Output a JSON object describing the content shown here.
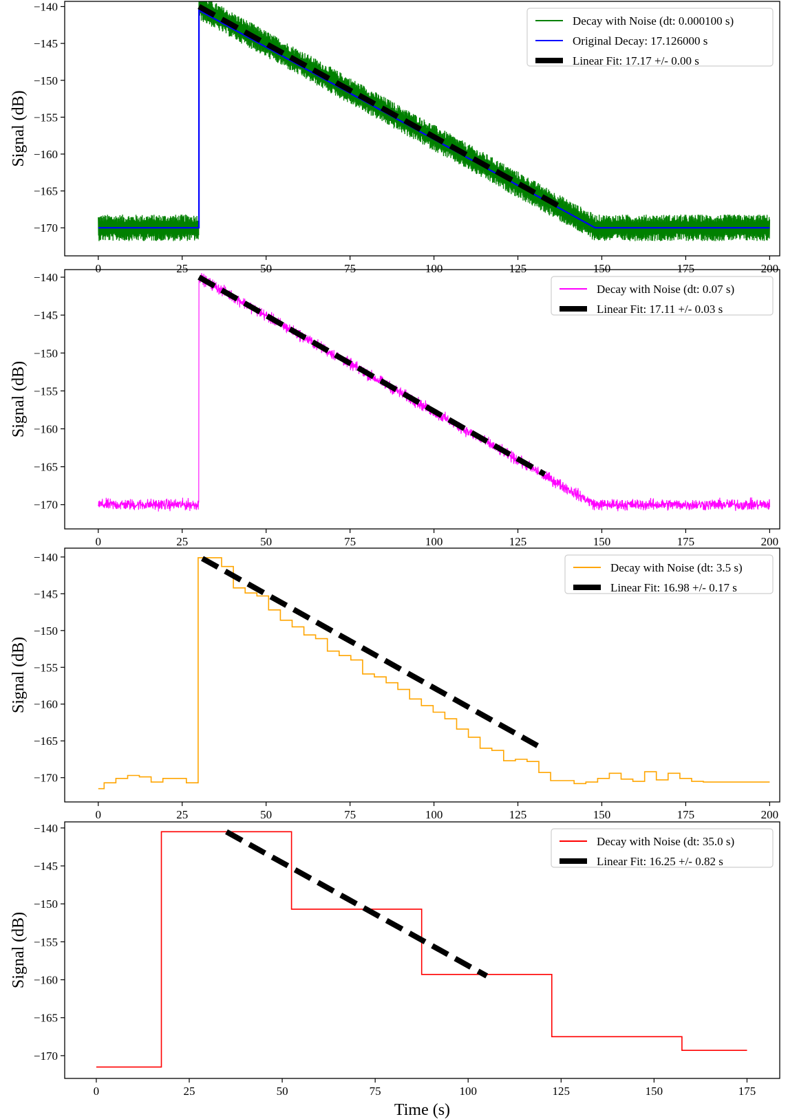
{
  "chart_data": [
    {
      "type": "line",
      "ylabel": "Signal (dB)",
      "xlabel": "",
      "xlim": [
        -10,
        203
      ],
      "ylim": [
        -173.8,
        -139.3
      ],
      "xticks": [
        0,
        25,
        50,
        75,
        100,
        125,
        150,
        175,
        200
      ],
      "yticks": [
        -140,
        -145,
        -150,
        -155,
        -160,
        -165,
        -170
      ],
      "legend_position": "top-right",
      "grid": false,
      "series": [
        {
          "name": "Decay with Noise (dt: 0.000100 s)",
          "kind": "noise-band",
          "color": "#008000",
          "x": [
            0,
            30,
            30,
            148,
            148,
            200
          ],
          "y": [
            -170,
            -170,
            -140,
            -170,
            -170,
            -170
          ],
          "noise_amplitude": 1.2
        },
        {
          "name": "Original Decay: 17.126000 s",
          "kind": "line",
          "color": "#0000ff",
          "x": [
            0,
            30,
            30,
            148,
            200
          ],
          "y": [
            -170,
            -170,
            -140.5,
            -170,
            -170
          ]
        },
        {
          "name": "Linear Fit: 17.17 +/- 0.00 s",
          "kind": "fit",
          "color": "#000000",
          "x": [
            30,
            137
          ],
          "y": [
            -140,
            -167
          ]
        }
      ]
    },
    {
      "type": "line",
      "ylabel": "Signal (dB)",
      "xlabel": "",
      "xlim": [
        -10,
        203
      ],
      "ylim": [
        -173.2,
        -139.0
      ],
      "xticks": [
        0,
        25,
        50,
        75,
        100,
        125,
        150,
        175,
        200
      ],
      "yticks": [
        -140,
        -145,
        -150,
        -155,
        -160,
        -165,
        -170
      ],
      "legend_position": "top-right",
      "grid": false,
      "series": [
        {
          "name": "Decay with Noise (dt: 0.07 s)",
          "kind": "noise-line",
          "color": "#ff00ff",
          "x": [
            0,
            30,
            30,
            148,
            200
          ],
          "y": [
            -170,
            -170,
            -140,
            -170,
            -170
          ],
          "noise_amplitude": 0.6
        },
        {
          "name": "Linear Fit: 17.11 +/- 0.03 s",
          "kind": "fit",
          "color": "#000000",
          "x": [
            30,
            133
          ],
          "y": [
            -140,
            -166
          ]
        }
      ]
    },
    {
      "type": "line",
      "ylabel": "Signal (dB)",
      "xlabel": "",
      "xlim": [
        -10,
        203
      ],
      "ylim": [
        -173.3,
        -138.8
      ],
      "xticks": [
        0,
        25,
        50,
        75,
        100,
        125,
        150,
        175,
        200
      ],
      "yticks": [
        -140,
        -145,
        -150,
        -155,
        -160,
        -165,
        -170
      ],
      "legend_position": "top-right",
      "grid": false,
      "series": [
        {
          "name": "Decay with Noise (dt: 3.5 s)",
          "kind": "step",
          "color": "#ffa500",
          "x": [
            0,
            1.75,
            5.25,
            8.75,
            12.25,
            15.75,
            19.25,
            22.75,
            26.25,
            29.75,
            33.25,
            36.75,
            40.25,
            43.75,
            47.25,
            50.75,
            54.25,
            57.75,
            61.25,
            64.75,
            68.25,
            71.75,
            75.25,
            78.75,
            82.25,
            85.75,
            89.25,
            92.75,
            96.25,
            99.75,
            103.25,
            106.75,
            110.25,
            113.75,
            117.25,
            120.75,
            124.25,
            127.75,
            131.25,
            134.75,
            138.25,
            141.75,
            145.25,
            148.75,
            152.25,
            155.75,
            159.25,
            162.75,
            166.25,
            169.75,
            173.25,
            176.75,
            180.25,
            183.75,
            187.25,
            190.75,
            194.25,
            197.75,
            200
          ],
          "y": [
            -171.5,
            -170.7,
            -170.1,
            -169.7,
            -169.9,
            -170.6,
            -170.1,
            -170.1,
            -170.7,
            -140.1,
            -140.1,
            -141.3,
            -144.2,
            -144.9,
            -145.3,
            -147.2,
            -148.6,
            -149.5,
            -150.6,
            -151.1,
            -152.8,
            -153.4,
            -154.0,
            -155.9,
            -156.3,
            -157.1,
            -158.0,
            -159.3,
            -160.2,
            -161.1,
            -162.0,
            -163.4,
            -164.5,
            -166.0,
            -166.3,
            -167.7,
            -167.5,
            -167.8,
            -169.3,
            -170.4,
            -170.4,
            -170.8,
            -170.6,
            -170.1,
            -169.4,
            -170.2,
            -170.5,
            -169.2,
            -170.3,
            -169.4,
            -170.1,
            -170.5,
            -170.6,
            -170.6,
            -170.6,
            -170.6,
            -170.6,
            -170.6,
            -170.6
          ]
        },
        {
          "name": "Linear Fit: 16.98 +/- 0.17 s",
          "kind": "fit",
          "color": "#000000",
          "x": [
            31,
            133
          ],
          "y": [
            -140.2,
            -166.2
          ]
        }
      ]
    },
    {
      "type": "line",
      "ylabel": "Signal (dB)",
      "xlabel": "Time (s)",
      "xlim": [
        -8.5,
        183.8
      ],
      "ylim": [
        -173.0,
        -139.2
      ],
      "xticks": [
        0,
        25,
        50,
        75,
        100,
        125,
        150,
        175
      ],
      "yticks": [
        -140,
        -145,
        -150,
        -155,
        -160,
        -165,
        -170
      ],
      "legend_position": "top-right",
      "grid": false,
      "series": [
        {
          "name": "Decay with Noise (dt: 35.0 s)",
          "kind": "step",
          "color": "#ff0000",
          "x": [
            0,
            17.5,
            52.5,
            87.5,
            122.5,
            157.5,
            175
          ],
          "y": [
            -171.5,
            -140.5,
            -150.7,
            -159.3,
            -167.5,
            -169.3,
            -169.3
          ]
        },
        {
          "name": "Linear Fit: 16.25 +/- 0.82 s",
          "kind": "fit",
          "color": "#000000",
          "x": [
            35,
            105
          ],
          "y": [
            -140.5,
            -159.5
          ]
        }
      ]
    }
  ]
}
